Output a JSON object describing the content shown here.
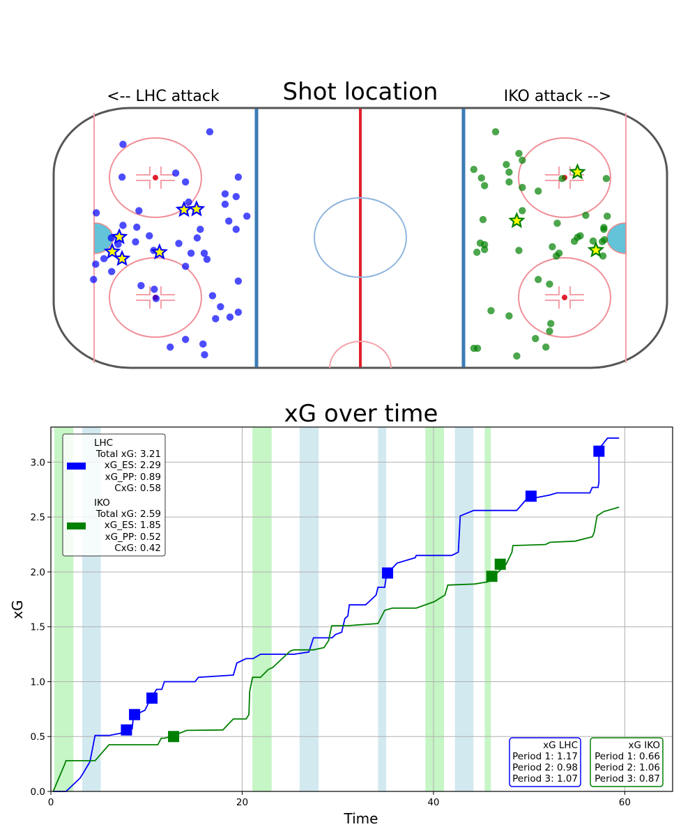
{
  "chart_data": [
    {
      "type": "scatter",
      "title": "Shot location",
      "left_label": "<-- LHC attack",
      "right_label": "IKO attack -->",
      "background": "hockey-rink",
      "xlim": [
        -100,
        100
      ],
      "ylim": [
        -42.5,
        42.5
      ],
      "units": "feet",
      "series": [
        {
          "name": "LHC",
          "color": "#0000ff",
          "shots": [
            [
              -49.1,
              34.7
            ],
            [
              -77.4,
              30.6
            ],
            [
              -77.7,
              19.9
            ],
            [
              -60.2,
              21.2
            ],
            [
              -57.0,
              18.3
            ],
            [
              -39.8,
              19.9
            ],
            [
              -44.1,
              14.4
            ],
            [
              -40.5,
              13.5
            ],
            [
              -44.1,
              11.0
            ],
            [
              -56.0,
              11.7
            ],
            [
              -86.1,
              8.2
            ],
            [
              -72.2,
              8.9
            ],
            [
              -37.0,
              7.1
            ],
            [
              -42.9,
              5.5
            ],
            [
              -40.5,
              2.8
            ],
            [
              -77.4,
              4.1
            ],
            [
              -72.9,
              3.5
            ],
            [
              -52.2,
              2.8
            ],
            [
              -68.8,
              0.7
            ],
            [
              -53.2,
              0.0
            ],
            [
              -81.2,
              0.0
            ],
            [
              -73.3,
              -1.3
            ],
            [
              -79.0,
              -2.1
            ],
            [
              -59.2,
              -1.8
            ],
            [
              -67.4,
              -4.1
            ],
            [
              -55.2,
              -5.0
            ],
            [
              -50.9,
              -5.0
            ],
            [
              -50.0,
              -7.0
            ],
            [
              -83.6,
              -6.8
            ],
            [
              -86.3,
              -8.6
            ],
            [
              -57.0,
              -9.3
            ],
            [
              -81.1,
              -11.0
            ],
            [
              -87.0,
              -13.6
            ],
            [
              -39.8,
              -14.1
            ],
            [
              -71.5,
              -15.6
            ],
            [
              -67.2,
              -16.8
            ],
            [
              -66.6,
              -19.8
            ],
            [
              -48.2,
              -18.9
            ],
            [
              -45.6,
              -22.5
            ],
            [
              -47.2,
              -26.4
            ],
            [
              -42.5,
              -25.9
            ],
            [
              -39.8,
              -24.3
            ],
            [
              -57.0,
              -33.2
            ],
            [
              -62.0,
              -35.7
            ],
            [
              -51.3,
              -34.7
            ],
            [
              -50.8,
              -38.2
            ]
          ],
          "goals": [
            [
              -57.5,
              9.2
            ],
            [
              -53.4,
              9.4
            ],
            [
              -78.6,
              0.3
            ],
            [
              -80.9,
              -4.5
            ],
            [
              -77.7,
              -6.8
            ],
            [
              -65.5,
              -4.7
            ]
          ]
        },
        {
          "name": "IKO",
          "color": "#008000",
          "shots": [
            [
              44.1,
              34.7
            ],
            [
              51.7,
              27.6
            ],
            [
              52.8,
              25.4
            ],
            [
              37.0,
              22.4
            ],
            [
              47.6,
              24.0
            ],
            [
              48.5,
              21.5
            ],
            [
              39.5,
              19.6
            ],
            [
              40.5,
              17.1
            ],
            [
              48.5,
              18.3
            ],
            [
              65.8,
              19.4
            ],
            [
              80.2,
              19.4
            ],
            [
              52.8,
              16.5
            ],
            [
              58.0,
              15.3
            ],
            [
              52.8,
              8.9
            ],
            [
              40.0,
              6.0
            ],
            [
              73.5,
              7.4
            ],
            [
              80.5,
              7.1
            ],
            [
              64.2,
              4.8
            ],
            [
              79.4,
              3.4
            ],
            [
              79.4,
              2.8
            ],
            [
              39.1,
              -1.7
            ],
            [
              40.5,
              -2.2
            ],
            [
              40.5,
              -3.8
            ],
            [
              38.0,
              -4.7
            ],
            [
              51.7,
              -4.1
            ],
            [
              62.6,
              -2.9
            ],
            [
              64.8,
              -5.0
            ],
            [
              63.9,
              -5.9
            ],
            [
              69.8,
              -1.1
            ],
            [
              70.8,
              0.2
            ],
            [
              71.7,
              0.7
            ],
            [
              75.9,
              -1.0
            ],
            [
              78.9,
              -1.2
            ],
            [
              79.6,
              -0.6
            ],
            [
              79.1,
              -5.9
            ],
            [
              58.0,
              -13.6
            ],
            [
              61.7,
              -15.1
            ],
            [
              42.6,
              -23.8
            ],
            [
              48.5,
              -25.5
            ],
            [
              62.1,
              -28.0
            ],
            [
              61.7,
              -30.5
            ],
            [
              57.1,
              -32.9
            ],
            [
              60.5,
              -35.7
            ],
            [
              37.0,
              -36.1
            ],
            [
              38.2,
              -36.1
            ],
            [
              51.0,
              -38.6
            ]
          ],
          "goals": [
            [
              70.8,
              21.5
            ],
            [
              51.0,
              5.6
            ],
            [
              76.8,
              -4.0
            ]
          ]
        }
      ]
    },
    {
      "type": "line",
      "title": "xG over time",
      "xlabel": "Time",
      "ylabel": "xG",
      "xlim": [
        0,
        65
      ],
      "ylim": [
        0,
        3.32
      ],
      "xticks": [
        "0",
        "20",
        "40",
        "60"
      ],
      "yticks": [
        "0.0",
        "0.5",
        "1.0",
        "1.5",
        "2.0",
        "2.5",
        "3.0"
      ],
      "grid": true,
      "spans": [
        {
          "from": 0.36,
          "to": 2.35,
          "color": "#c6f5c6"
        },
        {
          "from": 3.28,
          "to": 5.22,
          "color": "#d3e9f0"
        },
        {
          "from": 21.07,
          "to": 23.08,
          "color": "#c6f5c6"
        },
        {
          "from": 26.0,
          "to": 28.0,
          "color": "#d3e9f0"
        },
        {
          "from": 34.2,
          "to": 35.06,
          "color": "#d3e9f0"
        },
        {
          "from": 39.15,
          "to": 41.1,
          "color": "#c6f5c6"
        },
        {
          "from": 42.24,
          "to": 44.18,
          "color": "#d3e9f0"
        },
        {
          "from": 45.35,
          "to": 46.0,
          "color": "#c6f5c6"
        }
      ],
      "series": [
        {
          "name": "LHC",
          "color": "#0000ff",
          "points": [
            [
              0.24,
              0
            ],
            [
              1.58,
              0
            ],
            [
              3.04,
              0.12
            ],
            [
              3.4,
              0.17
            ],
            [
              4.08,
              0.27
            ],
            [
              4.62,
              0.51
            ],
            [
              6.08,
              0.51
            ],
            [
              7.29,
              0.53
            ],
            [
              8.5,
              0.57
            ],
            [
              8.63,
              0.68
            ],
            [
              9.36,
              0.72
            ],
            [
              9.84,
              0.74
            ],
            [
              10.45,
              0.85
            ],
            [
              11.06,
              0.93
            ],
            [
              11.6,
              0.93
            ],
            [
              11.86,
              1.0
            ],
            [
              15.07,
              1.0
            ],
            [
              15.43,
              1.04
            ],
            [
              19.08,
              1.06
            ],
            [
              19.44,
              1.17
            ],
            [
              20.41,
              1.21
            ],
            [
              21.14,
              1.21
            ],
            [
              21.92,
              1.25
            ],
            [
              25.4,
              1.25
            ],
            [
              26.97,
              1.27
            ],
            [
              27.46,
              1.4
            ],
            [
              29.4,
              1.4
            ],
            [
              29.77,
              1.43
            ],
            [
              30.4,
              1.45
            ],
            [
              30.74,
              1.575
            ],
            [
              31.05,
              1.6
            ],
            [
              31.2,
              1.7
            ],
            [
              32.9,
              1.7
            ],
            [
              33.4,
              1.74
            ],
            [
              34.0,
              1.79
            ],
            [
              34.2,
              1.86
            ],
            [
              34.9,
              1.86
            ],
            [
              35.1,
              1.98
            ],
            [
              36.2,
              2.08
            ],
            [
              38.1,
              2.13
            ],
            [
              38.2,
              2.15
            ],
            [
              41.9,
              2.15
            ],
            [
              42.6,
              2.18
            ],
            [
              42.8,
              2.51
            ],
            [
              44.2,
              2.56
            ],
            [
              48.7,
              2.56
            ],
            [
              49.7,
              2.66
            ],
            [
              52.1,
              2.7
            ],
            [
              52.9,
              2.72
            ],
            [
              56.35,
              2.72
            ],
            [
              56.6,
              2.77
            ],
            [
              57.2,
              2.77
            ],
            [
              57.3,
              2.82
            ],
            [
              57.3,
              3.12
            ],
            [
              58.2,
              3.22
            ],
            [
              59.4,
              3.22
            ]
          ],
          "goals": [
            [
              7.9,
              0.56
            ],
            [
              8.75,
              0.7
            ],
            [
              10.57,
              0.85
            ],
            [
              35.2,
              1.99
            ],
            [
              50.2,
              2.69
            ],
            [
              57.3,
              3.1
            ]
          ]
        },
        {
          "name": "IKO",
          "color": "#008000",
          "points": [
            [
              0.24,
              0
            ],
            [
              1.46,
              0.25
            ],
            [
              1.58,
              0.28
            ],
            [
              4.62,
              0.28
            ],
            [
              6.08,
              0.425
            ],
            [
              11.18,
              0.425
            ],
            [
              11.54,
              0.485
            ],
            [
              11.9,
              0.485
            ],
            [
              12.88,
              0.51
            ],
            [
              14.2,
              0.556
            ],
            [
              17.98,
              0.56
            ],
            [
              19.08,
              0.66
            ],
            [
              20.41,
              0.66
            ],
            [
              20.7,
              0.7
            ],
            [
              20.78,
              0.91
            ],
            [
              21.09,
              1.04
            ],
            [
              21.92,
              1.04
            ],
            [
              22.72,
              1.11
            ],
            [
              23.2,
              1.13
            ],
            [
              25.03,
              1.28
            ],
            [
              25.4,
              1.29
            ],
            [
              27.46,
              1.29
            ],
            [
              28.55,
              1.31
            ],
            [
              29.04,
              1.375
            ],
            [
              29.36,
              1.51
            ],
            [
              31.05,
              1.51
            ],
            [
              34.2,
              1.53
            ],
            [
              34.9,
              1.65
            ],
            [
              35.7,
              1.67
            ],
            [
              38.2,
              1.67
            ],
            [
              40.1,
              1.73
            ],
            [
              41.2,
              1.79
            ],
            [
              41.5,
              1.88
            ],
            [
              44.3,
              1.89
            ],
            [
              45.7,
              1.91
            ],
            [
              47.6,
              2.07
            ],
            [
              48.2,
              2.18
            ],
            [
              48.3,
              2.24
            ],
            [
              51.7,
              2.25
            ],
            [
              52.2,
              2.27
            ],
            [
              54.8,
              2.28
            ],
            [
              56.6,
              2.32
            ],
            [
              56.8,
              2.36
            ],
            [
              57.1,
              2.51
            ],
            [
              57.8,
              2.55
            ],
            [
              59.4,
              2.59
            ]
          ],
          "goals": [
            [
              12.83,
              0.5
            ],
            [
              46.1,
              1.96
            ],
            [
              46.98,
              2.07
            ]
          ]
        }
      ],
      "legend": {
        "placement": "top-left",
        "lhc": {
          "team": "LHC",
          "total": "Total xG: 3.21",
          "es": "xG_ES: 2.29",
          "pp": "xG_PP: 0.89",
          "cxg": "CxG: 0.58"
        },
        "iko": {
          "team": "IKO",
          "total": "Total xG: 2.59",
          "es": "xG_ES: 1.85",
          "pp": "xG_PP: 0.52",
          "cxg": "CxG: 0.42"
        }
      },
      "period_boxes": {
        "lhc": {
          "title": "xG LHC",
          "p1": "Period 1: 1.17",
          "p2": "Period 2: 0.98",
          "p3": "Period 3: 1.07"
        },
        "iko": {
          "title": "xG IKO",
          "p1": "Period 1: 0.66",
          "p2": "Period 2: 1.06",
          "p3": "Period 3: 0.87"
        }
      }
    }
  ]
}
